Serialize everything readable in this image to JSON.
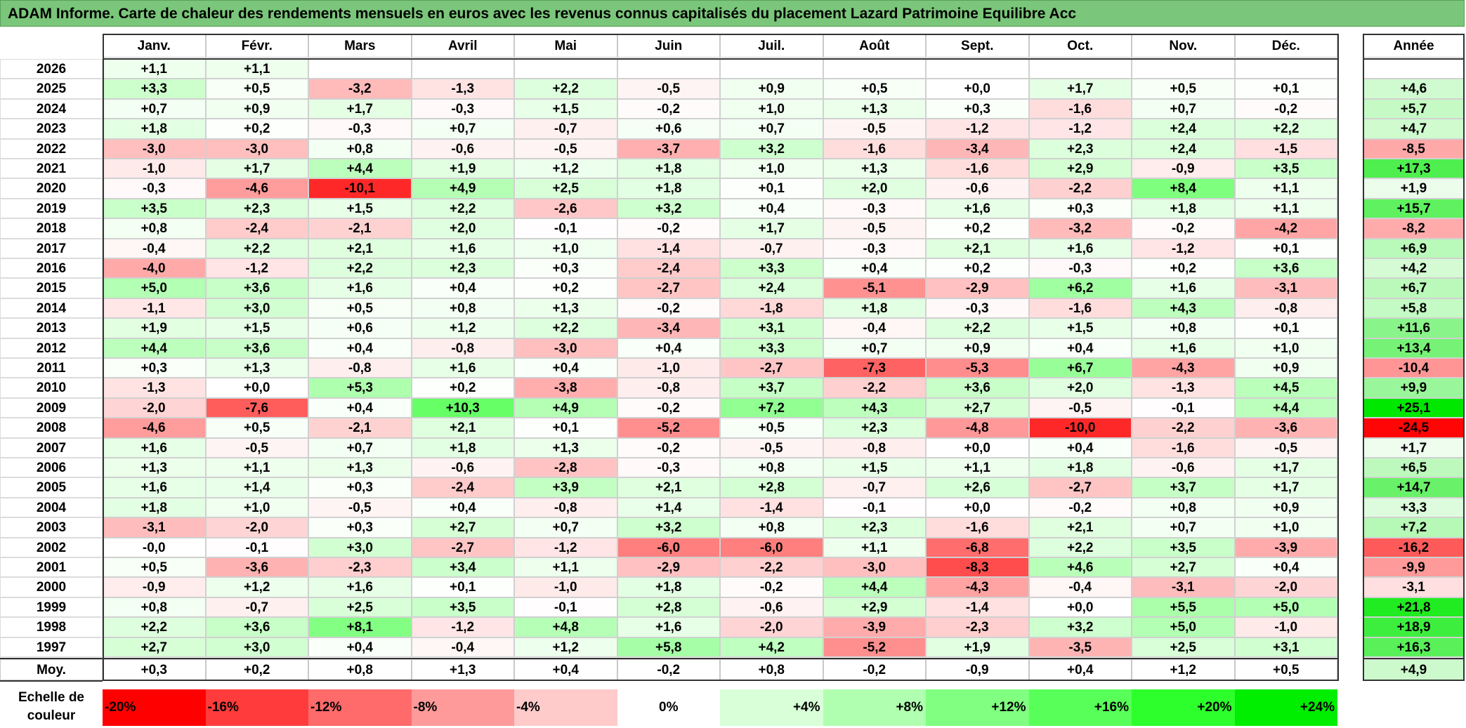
{
  "title": "ADAM Informe. Carte de chaleur des rendements mensuels en euros avec les revenus connus capitalisés du placement Lazard Patrimoine Equilibre Acc",
  "chart_data": {
    "type": "heatmap",
    "title": "ADAM Informe. Carte de chaleur des rendements mensuels en euros avec les revenus connus capitalisés du placement Lazard Patrimoine Equilibre Acc",
    "columns": [
      "Janv.",
      "Févr.",
      "Mars",
      "Avril",
      "Mai",
      "Juin",
      "Juil.",
      "Août",
      "Sept.",
      "Oct.",
      "Nov.",
      "Déc."
    ],
    "annual_header": "Année",
    "rows": [
      {
        "year": "2026",
        "months": [
          "+1,1",
          "+1,1",
          "",
          "",
          "",
          "",
          "",
          "",
          "",
          "",
          "",
          ""
        ],
        "annual": ""
      },
      {
        "year": "2025",
        "months": [
          "+3,3",
          "+0,5",
          "-3,2",
          "-1,3",
          "+2,2",
          "-0,5",
          "+0,9",
          "+0,5",
          "+0,0",
          "+1,7",
          "+0,5",
          "+0,1"
        ],
        "annual": "+4,6"
      },
      {
        "year": "2024",
        "months": [
          "+0,7",
          "+0,9",
          "+1,7",
          "-0,3",
          "+1,5",
          "-0,2",
          "+1,0",
          "+1,3",
          "+0,3",
          "-1,6",
          "+0,7",
          "-0,2"
        ],
        "annual": "+5,7"
      },
      {
        "year": "2023",
        "months": [
          "+1,8",
          "+0,2",
          "-0,3",
          "+0,7",
          "-0,7",
          "+0,6",
          "+0,7",
          "-0,5",
          "-1,2",
          "-1,2",
          "+2,4",
          "+2,2"
        ],
        "annual": "+4,7"
      },
      {
        "year": "2022",
        "months": [
          "-3,0",
          "-3,0",
          "+0,8",
          "-0,6",
          "-0,5",
          "-3,7",
          "+3,2",
          "-1,6",
          "-3,4",
          "+2,3",
          "+2,4",
          "-1,5"
        ],
        "annual": "-8,5"
      },
      {
        "year": "2021",
        "months": [
          "-1,0",
          "+1,7",
          "+4,4",
          "+1,9",
          "+1,2",
          "+1,8",
          "+1,0",
          "+1,3",
          "-1,6",
          "+2,9",
          "-0,9",
          "+3,5"
        ],
        "annual": "+17,3"
      },
      {
        "year": "2020",
        "months": [
          "-0,3",
          "-4,6",
          "-10,1",
          "+4,9",
          "+2,5",
          "+1,8",
          "+0,1",
          "+2,0",
          "-0,6",
          "-2,2",
          "+8,4",
          "+1,1"
        ],
        "annual": "+1,9"
      },
      {
        "year": "2019",
        "months": [
          "+3,5",
          "+2,3",
          "+1,5",
          "+2,2",
          "-2,6",
          "+3,2",
          "+0,4",
          "-0,3",
          "+1,6",
          "+0,3",
          "+1,8",
          "+1,1"
        ],
        "annual": "+15,7"
      },
      {
        "year": "2018",
        "months": [
          "+0,8",
          "-2,4",
          "-2,1",
          "+2,0",
          "-0,1",
          "-0,2",
          "+1,7",
          "-0,5",
          "+0,2",
          "-3,2",
          "-0,2",
          "-4,2"
        ],
        "annual": "-8,2"
      },
      {
        "year": "2017",
        "months": [
          "-0,4",
          "+2,2",
          "+2,1",
          "+1,6",
          "+1,0",
          "-1,4",
          "-0,7",
          "-0,3",
          "+2,1",
          "+1,6",
          "-1,2",
          "+0,1"
        ],
        "annual": "+6,9"
      },
      {
        "year": "2016",
        "months": [
          "-4,0",
          "-1,2",
          "+2,2",
          "+2,3",
          "+0,3",
          "-2,4",
          "+3,3",
          "+0,4",
          "+0,2",
          "-0,3",
          "+0,2",
          "+3,6"
        ],
        "annual": "+4,2"
      },
      {
        "year": "2015",
        "months": [
          "+5,0",
          "+3,6",
          "+1,6",
          "+0,4",
          "+0,2",
          "-2,7",
          "+2,4",
          "-5,1",
          "-2,9",
          "+6,2",
          "+1,6",
          "-3,1"
        ],
        "annual": "+6,7"
      },
      {
        "year": "2014",
        "months": [
          "-1,1",
          "+3,0",
          "+0,5",
          "+0,8",
          "+1,3",
          "-0,2",
          "-1,8",
          "+1,8",
          "-0,3",
          "-1,6",
          "+4,3",
          "-0,8"
        ],
        "annual": "+5,8"
      },
      {
        "year": "2013",
        "months": [
          "+1,9",
          "+1,5",
          "+0,6",
          "+1,2",
          "+2,2",
          "-3,4",
          "+3,1",
          "-0,4",
          "+2,2",
          "+1,5",
          "+0,8",
          "+0,1"
        ],
        "annual": "+11,6"
      },
      {
        "year": "2012",
        "months": [
          "+4,4",
          "+3,6",
          "+0,4",
          "-0,8",
          "-3,0",
          "+0,4",
          "+3,3",
          "+0,7",
          "+0,9",
          "+0,4",
          "+1,6",
          "+1,0"
        ],
        "annual": "+13,4"
      },
      {
        "year": "2011",
        "months": [
          "+0,3",
          "+1,3",
          "-0,8",
          "+1,6",
          "+0,4",
          "-1,0",
          "-2,7",
          "-7,3",
          "-5,3",
          "+6,7",
          "-4,3",
          "+0,9"
        ],
        "annual": "-10,4"
      },
      {
        "year": "2010",
        "months": [
          "-1,3",
          "+0,0",
          "+5,3",
          "+0,2",
          "-3,8",
          "-0,8",
          "+3,7",
          "-2,2",
          "+3,6",
          "+2,0",
          "-1,3",
          "+4,5"
        ],
        "annual": "+9,9"
      },
      {
        "year": "2009",
        "months": [
          "-2,0",
          "-7,6",
          "+0,4",
          "+10,3",
          "+4,9",
          "-0,2",
          "+7,2",
          "+4,3",
          "+2,7",
          "-0,5",
          "-0,1",
          "+4,4"
        ],
        "annual": "+25,1"
      },
      {
        "year": "2008",
        "months": [
          "-4,6",
          "+0,5",
          "-2,1",
          "+2,1",
          "+0,1",
          "-5,2",
          "+0,5",
          "+2,3",
          "-4,8",
          "-10,0",
          "-2,2",
          "-3,6"
        ],
        "annual": "-24,5"
      },
      {
        "year": "2007",
        "months": [
          "+1,6",
          "-0,5",
          "+0,7",
          "+1,8",
          "+1,3",
          "-0,2",
          "-0,5",
          "-0,8",
          "+0,0",
          "+0,4",
          "-1,6",
          "-0,5"
        ],
        "annual": "+1,7"
      },
      {
        "year": "2006",
        "months": [
          "+1,3",
          "+1,1",
          "+1,3",
          "-0,6",
          "-2,8",
          "-0,3",
          "+0,8",
          "+1,5",
          "+1,1",
          "+1,8",
          "-0,6",
          "+1,7"
        ],
        "annual": "+6,5"
      },
      {
        "year": "2005",
        "months": [
          "+1,6",
          "+1,4",
          "+0,3",
          "-2,4",
          "+3,9",
          "+2,1",
          "+2,8",
          "-0,7",
          "+2,6",
          "-2,7",
          "+3,7",
          "+1,7"
        ],
        "annual": "+14,7"
      },
      {
        "year": "2004",
        "months": [
          "+1,8",
          "+1,0",
          "-0,5",
          "+0,4",
          "-0,8",
          "+1,4",
          "-1,4",
          "-0,1",
          "+0,0",
          "-0,2",
          "+0,8",
          "+0,9"
        ],
        "annual": "+3,3"
      },
      {
        "year": "2003",
        "months": [
          "-3,1",
          "-2,0",
          "+0,3",
          "+2,7",
          "+0,7",
          "+3,2",
          "+0,8",
          "+2,3",
          "-1,6",
          "+2,1",
          "+0,7",
          "+1,0"
        ],
        "annual": "+7,2"
      },
      {
        "year": "2002",
        "months": [
          "-0,0",
          "-0,1",
          "+3,0",
          "-2,7",
          "-1,2",
          "-6,0",
          "-6,0",
          "+1,1",
          "-6,8",
          "+2,2",
          "+3,5",
          "-3,9"
        ],
        "annual": "-16,2"
      },
      {
        "year": "2001",
        "months": [
          "+0,5",
          "-3,6",
          "-2,3",
          "+3,4",
          "+1,1",
          "-2,9",
          "-2,2",
          "-3,0",
          "-8,3",
          "+4,6",
          "+2,7",
          "+0,4"
        ],
        "annual": "-9,9"
      },
      {
        "year": "2000",
        "months": [
          "-0,9",
          "+1,2",
          "+1,6",
          "+0,1",
          "-1,0",
          "+1,8",
          "-0,2",
          "+4,4",
          "-4,3",
          "-0,4",
          "-3,1",
          "-2,0"
        ],
        "annual": "-3,1"
      },
      {
        "year": "1999",
        "months": [
          "+0,8",
          "-0,7",
          "+2,5",
          "+3,5",
          "-0,1",
          "+2,8",
          "-0,6",
          "+2,9",
          "-1,4",
          "+0,0",
          "+5,5",
          "+5,0"
        ],
        "annual": "+21,8"
      },
      {
        "year": "1998",
        "months": [
          "+2,2",
          "+3,6",
          "+8,1",
          "-1,2",
          "+4,8",
          "+1,6",
          "-2,0",
          "-3,9",
          "-2,3",
          "+3,2",
          "+5,0",
          "-1,0"
        ],
        "annual": "+18,9"
      },
      {
        "year": "1997",
        "months": [
          "+2,7",
          "+3,0",
          "+0,4",
          "-0,4",
          "+1,2",
          "+5,8",
          "+4,2",
          "-5,2",
          "+1,9",
          "-3,5",
          "+2,5",
          "+3,1"
        ],
        "annual": "+16,3"
      }
    ],
    "average": {
      "label": "Moy.",
      "months": [
        "+0,3",
        "+0,2",
        "+0,8",
        "+1,3",
        "+0,4",
        "-0,2",
        "+0,8",
        "-0,2",
        "-0,9",
        "+0,4",
        "+1,2",
        "+0,5"
      ],
      "annual": "+4,9"
    },
    "scale": {
      "label": "Echelle de couleur",
      "stops": [
        "-20%",
        "-16%",
        "-12%",
        "-8%",
        "-4%",
        "0%",
        "+4%",
        "+8%",
        "+12%",
        "+16%",
        "+20%",
        "+24%"
      ],
      "colors": [
        "#ff0000",
        "#ff3b3b",
        "#ff6a6a",
        "#ff9a9a",
        "#ffcaca",
        "#ffffff",
        "#d8ffd8",
        "#b0ffb0",
        "#80ff80",
        "#58ff58",
        "#2cff2c",
        "#00ee00"
      ]
    },
    "colors": {
      "negative": "#ff0000",
      "neutral": "#ffffff",
      "positive": "#00ff00",
      "title_bg": "#7ac67a"
    }
  }
}
